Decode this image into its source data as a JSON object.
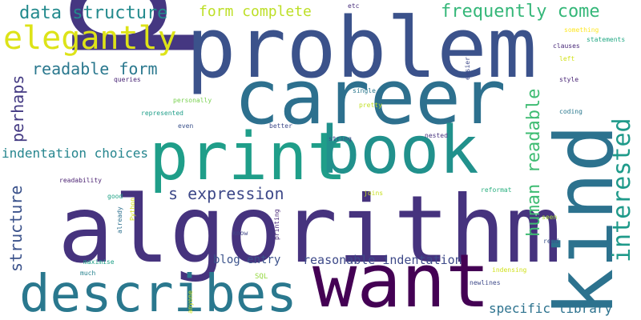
{
  "words": [
    {
      "text": "p",
      "color": "#453781"
    },
    {
      "text": "problem",
      "color": "#3b528b"
    },
    {
      "text": "career",
      "color": "#2d708e"
    },
    {
      "text": "algorithm",
      "color": "#46337e"
    },
    {
      "text": "want",
      "color": "#440154"
    },
    {
      "text": "kind",
      "color": "#2c728e"
    },
    {
      "text": "print",
      "color": "#1f9e89"
    },
    {
      "text": "book",
      "color": "#21918c"
    },
    {
      "text": "describes",
      "color": "#2a788e"
    },
    {
      "text": "elegantly",
      "color": "#dde318"
    },
    {
      "text": "data structure",
      "color": "#238a8d"
    },
    {
      "text": "form complete",
      "color": "#bddf26"
    },
    {
      "text": "frequently come",
      "color": "#35b779"
    },
    {
      "text": "readable form",
      "color": "#2a788e"
    },
    {
      "text": "perhaps",
      "color": "#443a83"
    },
    {
      "text": "structure",
      "color": "#3b528b"
    },
    {
      "text": "human readable",
      "color": "#3fbc73"
    },
    {
      "text": "interested",
      "color": "#1f9a8a"
    },
    {
      "text": "indentation choices",
      "color": "#25858e"
    },
    {
      "text": "s expression",
      "color": "#3e4989"
    },
    {
      "text": "blog entry",
      "color": "#3b528b"
    },
    {
      "text": "reasonable indentation",
      "color": "#3e4a89"
    },
    {
      "text": "specific library",
      "color": "#2c728e"
    },
    {
      "text": "etc",
      "color": "#472d7b"
    },
    {
      "text": "something",
      "color": "#fde725"
    },
    {
      "text": "clauses",
      "color": "#482878"
    },
    {
      "text": "statements",
      "color": "#22a884"
    },
    {
      "text": "easier",
      "color": "#3e4989"
    },
    {
      "text": "left",
      "color": "#d2e21b"
    },
    {
      "text": "style",
      "color": "#482475"
    },
    {
      "text": "queries",
      "color": "#482475"
    },
    {
      "text": "personally",
      "color": "#7ad151"
    },
    {
      "text": "single",
      "color": "#2a788e"
    },
    {
      "text": "pretty",
      "color": "#c0df25"
    },
    {
      "text": "represented",
      "color": "#1f9e89"
    },
    {
      "text": "even",
      "color": "#3b528b"
    },
    {
      "text": "better",
      "color": "#3e4a89"
    },
    {
      "text": "coding",
      "color": "#2a788e"
    },
    {
      "text": "string",
      "color": "#3e4989"
    },
    {
      "text": "nested",
      "color": "#46337e"
    },
    {
      "text": "readability",
      "color": "#481f70"
    },
    {
      "text": "joins",
      "color": "#c8e020"
    },
    {
      "text": "reformat",
      "color": "#29af7f"
    },
    {
      "text": "good",
      "color": "#20a386"
    },
    {
      "text": "Python",
      "color": "#d8e219"
    },
    {
      "text": "already",
      "color": "#2d708e"
    },
    {
      "text": "printing",
      "color": "#482878"
    },
    {
      "text": "seen",
      "color": "#a5db36"
    },
    {
      "text": "know",
      "color": "#404688"
    },
    {
      "text": "read",
      "color": "#3b528b"
    },
    {
      "text": "maximise",
      "color": "#1fa088"
    },
    {
      "text": "much",
      "color": "#26828e"
    },
    {
      "text": "SQL",
      "color": "#95d840"
    },
    {
      "text": "anyone",
      "color": "#d2e21b"
    },
    {
      "text": "newlines",
      "color": "#3e4a89"
    },
    {
      "text": "indensing",
      "color": "#d0e11c"
    }
  ]
}
